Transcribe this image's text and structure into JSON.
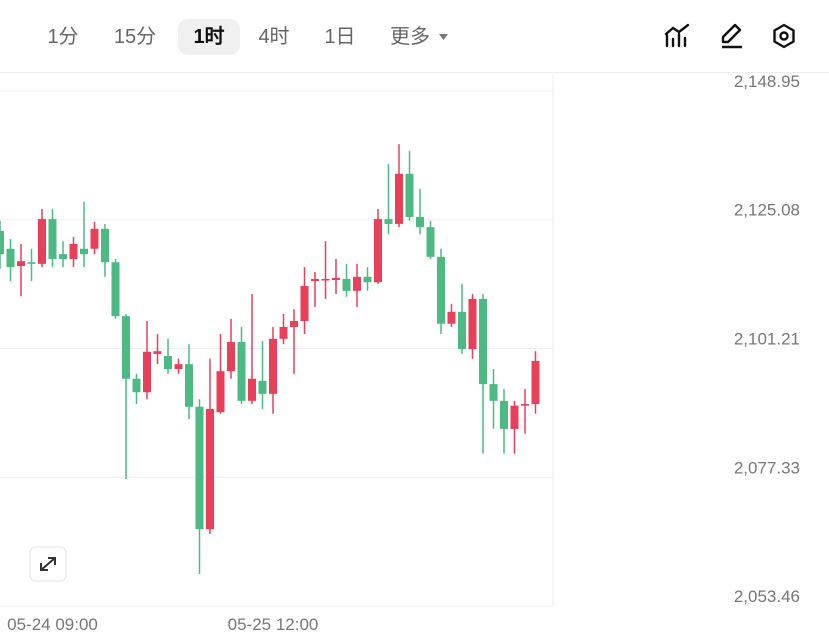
{
  "toolbar": {
    "tabs": [
      "1分",
      "15分",
      "1时",
      "4时",
      "1日",
      "更多"
    ],
    "selected": 2
  },
  "chart_data": {
    "type": "candlestick",
    "categories": [
      null,
      null,
      null,
      null,
      null,
      "05-24 09:00",
      null,
      null,
      null,
      null,
      null,
      null,
      null,
      null,
      null,
      null,
      null,
      null,
      null,
      null,
      null,
      null,
      null,
      null,
      null,
      null,
      "05-25 12:00",
      null,
      null,
      null,
      null,
      null,
      null,
      null,
      null,
      null,
      null,
      null,
      null,
      null,
      null,
      null,
      null,
      null,
      null,
      null,
      null,
      null,
      null,
      null,
      null,
      null
    ],
    "open": [
      2123.0,
      2119.7,
      2116.5,
      2117.2,
      2116.9,
      2125.2,
      2118.7,
      2117.8,
      2119.7,
      2119.7,
      2123.4,
      2117.2,
      2107.2,
      2095.6,
      2093.1,
      2100.2,
      2099.8,
      2097.4,
      2098.3,
      2090.4,
      2067.7,
      2089.4,
      2097.0,
      2102.4,
      2091.5,
      2095.2,
      2092.8,
      2103.0,
      2105.2,
      2106.3,
      2113.7,
      2113.9,
      2113.9,
      2114.1,
      2111.9,
      2114.5,
      2113.5,
      2125.2,
      2124.3,
      2133.6,
      2125.6,
      2123.7,
      2118.2,
      2105.8,
      2108.0,
      2101.1,
      2110.4,
      2094.6,
      2091.5,
      2086.3,
      2090.6,
      2090.9
    ],
    "high": [
      2124.9,
      2121.5,
      2120.6,
      2119.7,
      2127.1,
      2127.1,
      2121.1,
      2121.9,
      2128.4,
      2124.7,
      2124.3,
      2117.8,
      2107.6,
      2096.5,
      2106.3,
      2103.9,
      2103.0,
      2099.3,
      2102.0,
      2091.8,
      2099.3,
      2103.9,
      2106.7,
      2105.2,
      2111.3,
      2102.6,
      2105.2,
      2107.6,
      2108.5,
      2116.3,
      2115.4,
      2121.1,
      2117.8,
      2116.9,
      2116.9,
      2116.3,
      2127.1,
      2135.4,
      2139.1,
      2137.8,
      2130.8,
      2124.9,
      2119.7,
      2109.5,
      2113.2,
      2111.3,
      2111.3,
      2097.4,
      2093.7,
      2091.5,
      2093.7,
      2100.7
    ],
    "low": [
      2116.0,
      2113.7,
      2110.9,
      2113.7,
      2116.3,
      2116.3,
      2116.3,
      2116.3,
      2116.3,
      2118.7,
      2114.5,
      2106.7,
      2077.0,
      2090.9,
      2091.8,
      2098.3,
      2096.5,
      2096.5,
      2088.1,
      2059.4,
      2066.8,
      2089.1,
      2095.6,
      2090.9,
      2090.9,
      2090.0,
      2089.1,
      2102.0,
      2096.5,
      2103.9,
      2108.9,
      2110.4,
      2111.3,
      2110.8,
      2108.9,
      2111.9,
      2113.2,
      2122.4,
      2123.7,
      2124.9,
      2122.4,
      2117.8,
      2103.9,
      2105.2,
      2100.2,
      2099.3,
      2081.7,
      2086.3,
      2081.7,
      2081.7,
      2085.4,
      2089.1
    ],
    "close": [
      2118.7,
      2116.3,
      2117.4,
      2116.9,
      2125.2,
      2117.8,
      2117.8,
      2120.6,
      2118.7,
      2123.4,
      2117.2,
      2107.2,
      2095.6,
      2093.1,
      2100.6,
      2100.7,
      2097.4,
      2098.3,
      2090.4,
      2067.7,
      2090.0,
      2097.0,
      2102.4,
      2091.5,
      2095.6,
      2092.8,
      2103.0,
      2105.2,
      2106.3,
      2112.8,
      2114.1,
      2114.1,
      2114.3,
      2111.9,
      2114.5,
      2113.5,
      2125.2,
      2124.3,
      2133.6,
      2125.6,
      2123.7,
      2118.2,
      2105.8,
      2108.0,
      2101.1,
      2110.4,
      2094.6,
      2091.5,
      2086.3,
      2090.6,
      2090.9,
      2098.9
    ],
    "up_color": "#e8405a",
    "down_color": "#4cba82",
    "ylim": [
      2053.46,
      2148.95
    ],
    "yticks": [
      {
        "value": 2148.95,
        "label": "2,148.95"
      },
      {
        "value": 2125.08,
        "label": "2,125.08"
      },
      {
        "value": 2101.21,
        "label": "2,101.21"
      },
      {
        "value": 2077.33,
        "label": "2,077.33"
      },
      {
        "value": 2053.46,
        "label": "2,053.46"
      }
    ],
    "grid": true
  }
}
